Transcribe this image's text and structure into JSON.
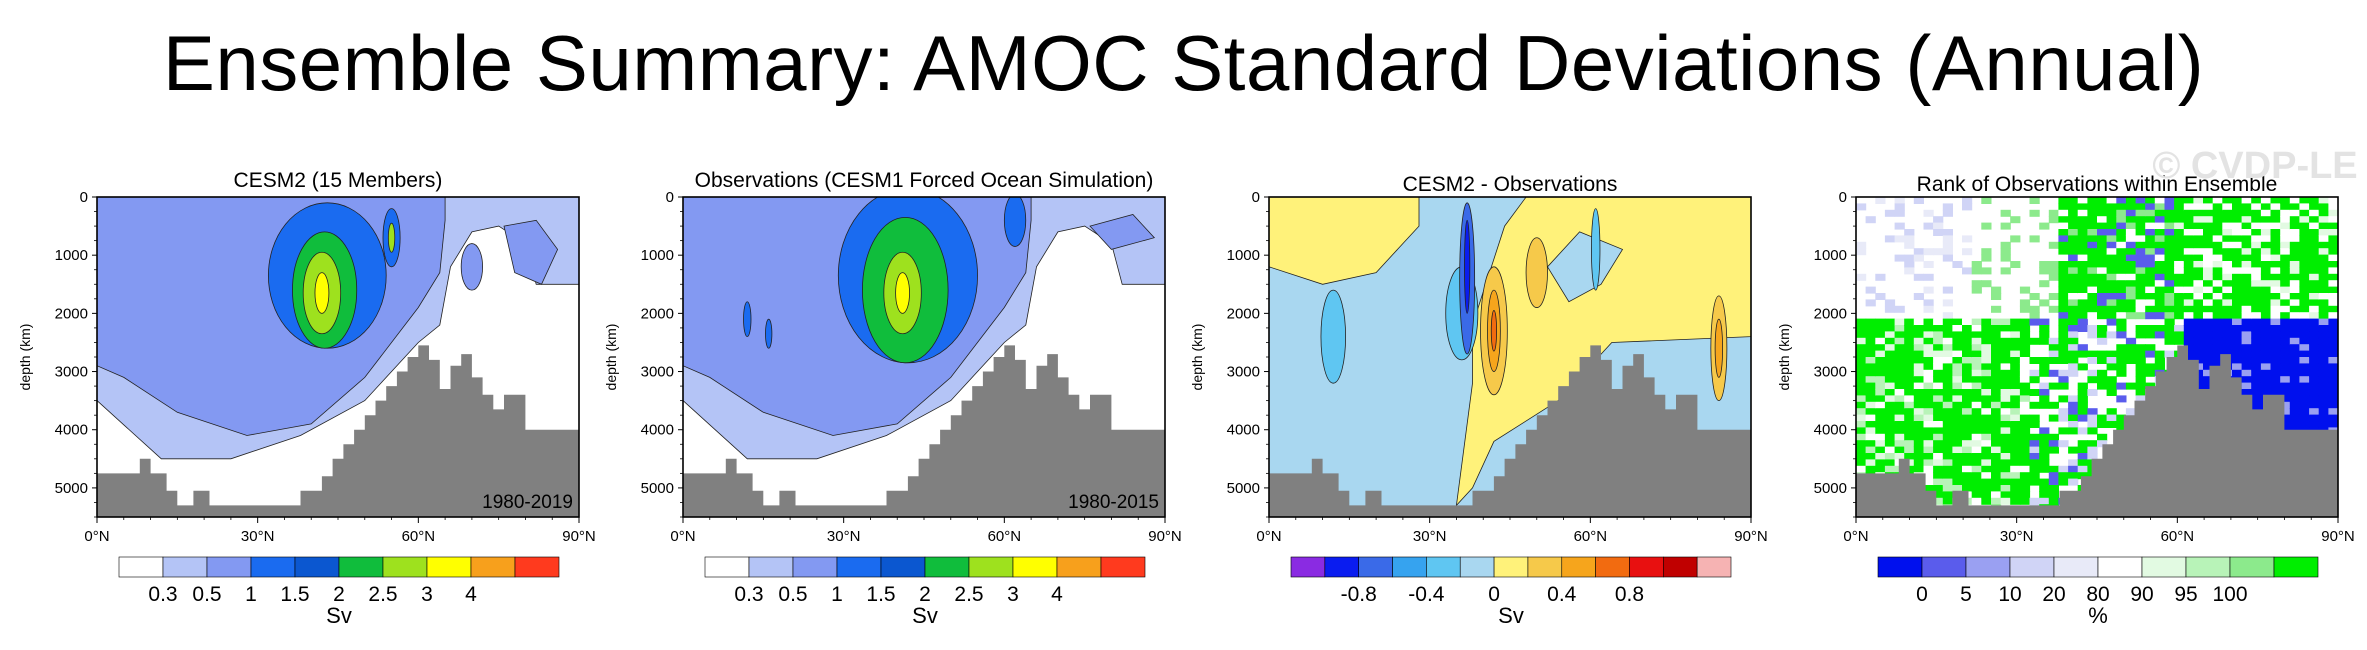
{
  "title": "Ensemble Summary: AMOC Standard Deviations (Annual)",
  "watermark": "© CVDP-LE",
  "colors": {
    "bathymetry": "#808080",
    "sd_levels": [
      "#ffffff",
      "#b4c4f6",
      "#8399f2",
      "#1a6bf0",
      "#0b57d0",
      "#10bd3c",
      "#9ee11e",
      "#ffff00",
      "#f7a01c",
      "#ff3a1e"
    ],
    "diff_levels": [
      "#8a2be2",
      "#0a1cf0",
      "#3a6ae8",
      "#36a3ef",
      "#5fc6f2",
      "#a9d7f0",
      "#fff27a",
      "#f6c94a",
      "#f6a51c",
      "#f26b10",
      "#e81010",
      "#c00000",
      "#f6b3b3"
    ],
    "rank_levels": [
      "#0010ee",
      "#5a5cec",
      "#9aa0f2",
      "#d0d4f6",
      "#e8eaf8",
      "#ffffff",
      "#e2fae2",
      "#b8f3b8",
      "#8cea8c",
      "#00ee00"
    ]
  },
  "chart_data": [
    {
      "id": "p1",
      "type": "heatmap",
      "title": "CESM2 (15 Members)",
      "xlabel": "",
      "ylabel": "depth (km)",
      "xlim": [
        0,
        90
      ],
      "ylim": [
        5500,
        0
      ],
      "xticks": [
        "0°N",
        "30°N",
        "60°N",
        "90°N"
      ],
      "yticks": [
        "0",
        "1000",
        "2000",
        "3000",
        "4000",
        "5000"
      ],
      "period": "1980-2019",
      "colorbar": {
        "labels": [
          "0.3",
          "0.5",
          "1",
          "1.5",
          "2",
          "2.5",
          "3",
          "4"
        ],
        "unit": "Sv"
      }
    },
    {
      "id": "p2",
      "type": "heatmap",
      "title": "Observations (CESM1 Forced Ocean Simulation)",
      "xlabel": "",
      "ylabel": "depth (km)",
      "xlim": [
        0,
        90
      ],
      "ylim": [
        5500,
        0
      ],
      "xticks": [
        "0°N",
        "30°N",
        "60°N",
        "90°N"
      ],
      "yticks": [
        "0",
        "1000",
        "2000",
        "3000",
        "4000",
        "5000"
      ],
      "period": "1980-2015",
      "colorbar": {
        "labels": [
          "0.3",
          "0.5",
          "1",
          "1.5",
          "2",
          "2.5",
          "3",
          "4"
        ],
        "unit": "Sv"
      }
    },
    {
      "id": "p3",
      "type": "heatmap",
      "title": "CESM2 - Observations",
      "xlabel": "",
      "ylabel": "depth (km)",
      "xlim": [
        0,
        90
      ],
      "ylim": [
        5500,
        0
      ],
      "xticks": [
        "0°N",
        "30°N",
        "60°N",
        "90°N"
      ],
      "yticks": [
        "0",
        "1000",
        "2000",
        "3000",
        "4000",
        "5000"
      ],
      "colorbar": {
        "labels": [
          "-0.8",
          "-0.4",
          "0",
          "0.4",
          "0.8"
        ],
        "unit": "Sv"
      }
    },
    {
      "id": "p4",
      "type": "heatmap",
      "title": "Rank of Observations within Ensemble",
      "xlabel": "",
      "ylabel": "depth (km)",
      "xlim": [
        0,
        90
      ],
      "ylim": [
        5500,
        0
      ],
      "xticks": [
        "0°N",
        "30°N",
        "60°N",
        "90°N"
      ],
      "yticks": [
        "0",
        "1000",
        "2000",
        "3000",
        "4000",
        "5000"
      ],
      "colorbar": {
        "labels": [
          "0",
          "5",
          "10",
          "20",
          "80",
          "90",
          "95",
          "100"
        ],
        "unit": "%"
      }
    }
  ]
}
